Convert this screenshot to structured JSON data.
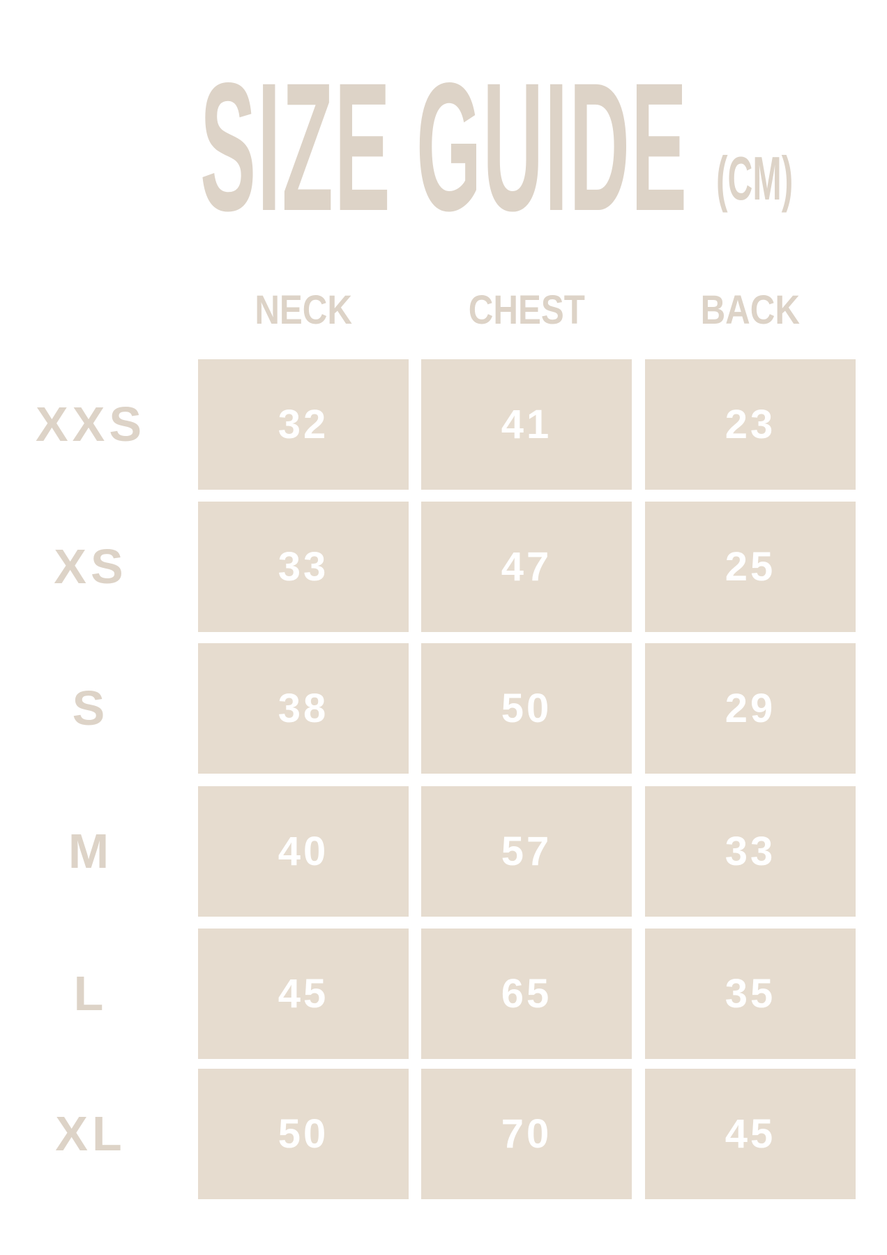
{
  "title": {
    "main": "SIZE GUIDE",
    "unit": "(CM)"
  },
  "colors": {
    "title": "#ddd3c7",
    "cell_bg": "#e6dccf",
    "cell_text": "#ffffff"
  },
  "columns": [
    "NECK",
    "CHEST",
    "BACK"
  ],
  "rows": [
    {
      "size": "XXS",
      "values": [
        "32",
        "41",
        "23"
      ]
    },
    {
      "size": "XS",
      "values": [
        "33",
        "47",
        "25"
      ]
    },
    {
      "size": "S",
      "values": [
        "38",
        "50",
        "29"
      ]
    },
    {
      "size": "M",
      "values": [
        "40",
        "57",
        "33"
      ]
    },
    {
      "size": "L",
      "values": [
        "45",
        "65",
        "35"
      ]
    },
    {
      "size": "XL",
      "values": [
        "50",
        "70",
        "45"
      ]
    }
  ]
}
